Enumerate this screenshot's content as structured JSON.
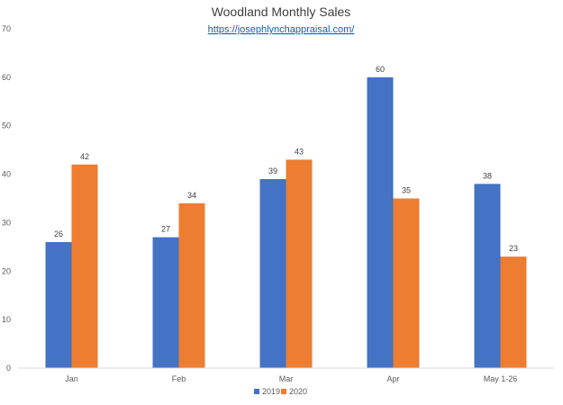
{
  "chart_data": {
    "type": "bar",
    "title": "Woodland Monthly Sales",
    "subtitle": "https://josephlynchappraisal.com/",
    "categories": [
      "Jan",
      "Feb",
      "Mar",
      "Apr",
      "May 1-26"
    ],
    "series": [
      {
        "name": "2019",
        "color": "#4472C4",
        "values": [
          26,
          27,
          39,
          60,
          38
        ]
      },
      {
        "name": "2020",
        "color": "#ED7D31",
        "values": [
          42,
          34,
          43,
          35,
          23
        ]
      }
    ],
    "ylim": [
      0,
      70
    ],
    "yticks": [
      0,
      10,
      20,
      30,
      40,
      50,
      60,
      70
    ],
    "xlabel": "",
    "ylabel": "",
    "grid": false,
    "legend": "bottom-center",
    "data_labels": true
  }
}
